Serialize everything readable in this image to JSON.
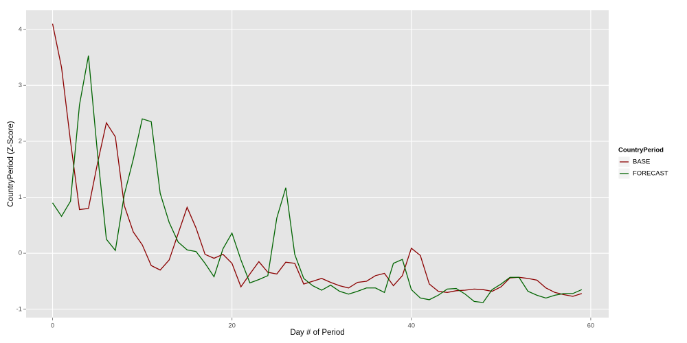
{
  "chart_data": {
    "type": "line",
    "x_label": "Day # of Period",
    "y_label": "CountryPeriod (Z-Score)",
    "legend_title": "CountryPeriod",
    "legend_position": "right",
    "grid": true,
    "x": [
      0,
      1,
      2,
      3,
      4,
      5,
      6,
      7,
      8,
      9,
      10,
      11,
      12,
      13,
      14,
      15,
      16,
      17,
      18,
      19,
      20,
      21,
      22,
      23,
      24,
      25,
      26,
      27,
      28,
      29,
      30,
      31,
      32,
      33,
      34,
      35,
      36,
      37,
      38,
      39,
      40,
      41,
      42,
      43,
      44,
      45,
      46,
      47,
      48,
      49,
      50,
      51,
      52,
      53,
      54,
      55,
      56,
      57,
      58,
      59
    ],
    "series": [
      {
        "name": "BASE",
        "color": "#8b0000",
        "values": [
          4.1,
          3.32,
          2.0,
          0.78,
          0.8,
          1.6,
          2.33,
          2.08,
          0.85,
          0.38,
          0.15,
          -0.22,
          -0.3,
          -0.12,
          0.35,
          0.82,
          0.45,
          -0.02,
          -0.09,
          -0.02,
          -0.18,
          -0.6,
          -0.37,
          -0.15,
          -0.34,
          -0.37,
          -0.16,
          -0.18,
          -0.55,
          -0.5,
          -0.45,
          -0.52,
          -0.58,
          -0.62,
          -0.52,
          -0.5,
          -0.4,
          -0.36,
          -0.58,
          -0.4,
          0.09,
          -0.04,
          -0.55,
          -0.68,
          -0.7,
          -0.67,
          -0.66,
          -0.64,
          -0.65,
          -0.68,
          -0.6,
          -0.44,
          -0.43,
          -0.45,
          -0.48,
          -0.62,
          -0.7,
          -0.74,
          -0.77,
          -0.72
        ]
      },
      {
        "name": "FORECAST",
        "color": "#006400",
        "values": [
          0.9,
          0.66,
          0.93,
          2.65,
          3.53,
          1.8,
          0.25,
          0.05,
          1.05,
          1.68,
          2.4,
          2.35,
          1.07,
          0.55,
          0.2,
          0.06,
          0.03,
          -0.18,
          -0.42,
          0.08,
          0.36,
          -0.12,
          -0.53,
          -0.47,
          -0.4,
          0.63,
          1.17,
          -0.02,
          -0.45,
          -0.58,
          -0.66,
          -0.57,
          -0.68,
          -0.73,
          -0.68,
          -0.62,
          -0.62,
          -0.7,
          -0.18,
          -0.11,
          -0.65,
          -0.8,
          -0.83,
          -0.75,
          -0.64,
          -0.63,
          -0.73,
          -0.86,
          -0.88,
          -0.65,
          -0.55,
          -0.43,
          -0.43,
          -0.68,
          -0.75,
          -0.8,
          -0.75,
          -0.72,
          -0.72,
          -0.65
        ]
      }
    ],
    "xlim": [
      -2.95,
      62
    ],
    "ylim": [
      -1.15,
      4.34
    ],
    "xticks": [
      0,
      20,
      40,
      60
    ],
    "yticks": [
      -1,
      0,
      1,
      2,
      3,
      4
    ]
  }
}
